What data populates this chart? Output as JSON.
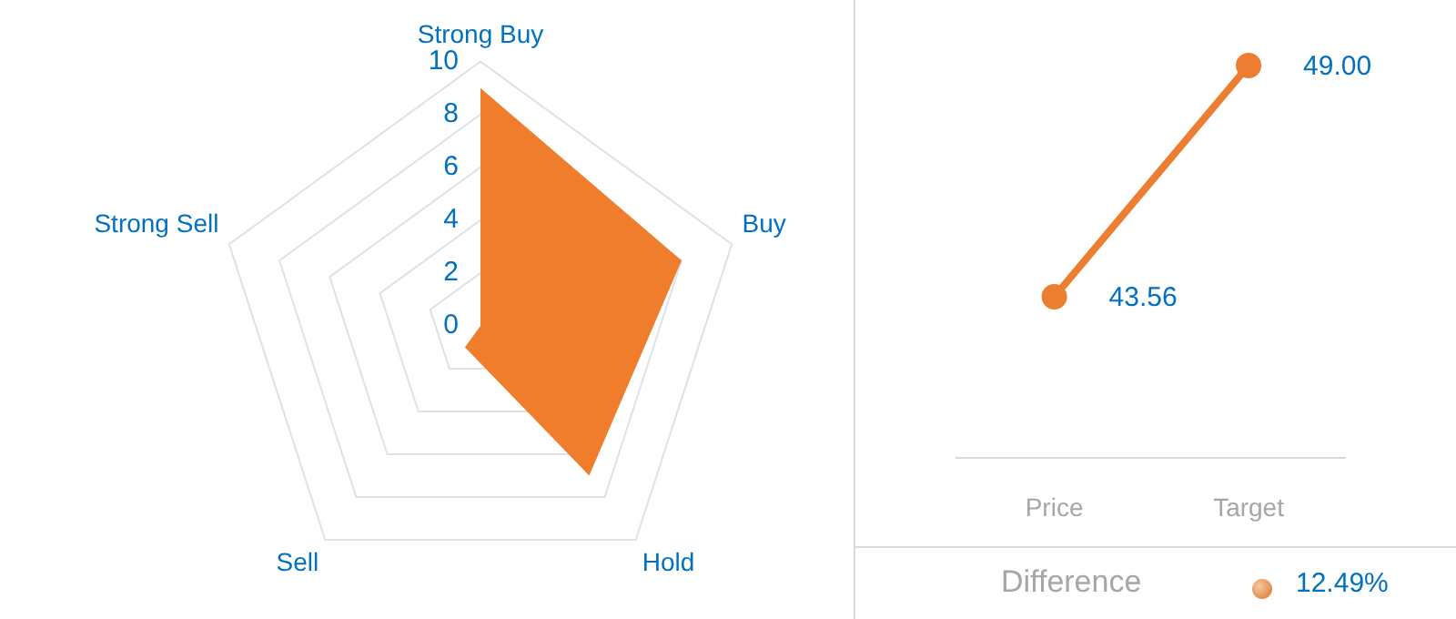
{
  "chart_data": [
    {
      "type": "radar",
      "categories": [
        "Strong Buy",
        "Buy",
        "Hold",
        "Sell",
        "Strong Sell"
      ],
      "series": [
        {
          "color": "#ef7d2c",
          "values": [
            9,
            8,
            7,
            1,
            0
          ]
        }
      ],
      "ylim": [
        0,
        10
      ],
      "yticks": [
        0,
        2,
        4,
        6,
        8,
        10
      ],
      "grid": true
    },
    {
      "type": "line",
      "categories": [
        "Price",
        "Target"
      ],
      "series": [
        {
          "color": "#ed7d31",
          "values": [
            43.56,
            49.0
          ],
          "value_labels": [
            "43.56",
            "49.00"
          ]
        }
      ],
      "marker": "circle",
      "tick_labels": "x",
      "annotations": [
        "Difference",
        "12.49%"
      ]
    }
  ]
}
